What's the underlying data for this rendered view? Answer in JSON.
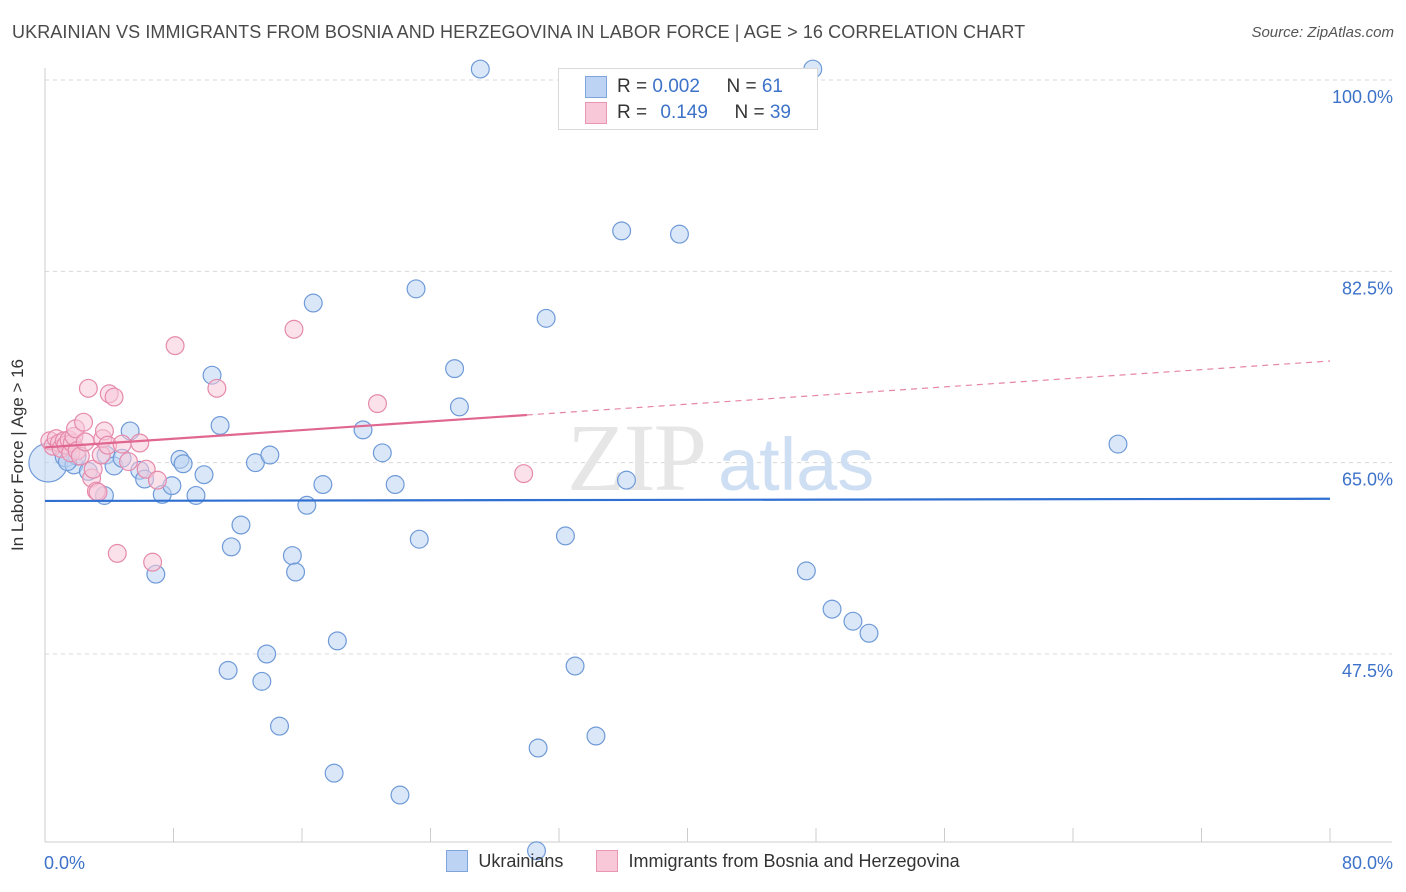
{
  "title": "UKRAINIAN VS IMMIGRANTS FROM BOSNIA AND HERZEGOVINA IN LABOR FORCE | AGE > 16 CORRELATION CHART",
  "source": "Source: ZipAtlas.com",
  "watermark": {
    "zip": "ZIP",
    "atlas": "atlas"
  },
  "stats": {
    "blue": {
      "r_label": "R = ",
      "r_value": "0.002",
      "n_label": "N = ",
      "n_value": "61"
    },
    "pink": {
      "r_label": "R = ",
      "r_value": "0.149",
      "n_label": "N = ",
      "n_value": "39"
    }
  },
  "legend": {
    "blue": "Ukrainians",
    "pink": "Immigrants from Bosnia and Herzegovina"
  },
  "colors": {
    "blue_fill": "#bcd3f3",
    "blue_stroke": "#6f9ad8",
    "blue_line": "#2e6fd1",
    "pink_fill": "#f8c8d8",
    "pink_stroke": "#e58aab",
    "pink_line": "#e0678f",
    "tick_label": "#3d72c9",
    "grid": "#d8d8d8"
  },
  "chart_data": {
    "type": "scatter",
    "title": "UKRAINIAN VS IMMIGRANTS FROM BOSNIA AND HERZEGOVINA IN LABOR FORCE | AGE > 16 CORRELATION CHART",
    "xlabel": "",
    "ylabel": "In Labor Force | Age > 16",
    "xlim": [
      0,
      80
    ],
    "ylim": [
      29,
      102
    ],
    "x_tick_labels": [
      "0.0%",
      "80.0%"
    ],
    "y_ticks": [
      47.5,
      65.0,
      82.5,
      100.0
    ],
    "y_tick_labels": [
      "47.5%",
      "65.0%",
      "82.5%",
      "100.0%"
    ],
    "series": [
      {
        "name": "Ukrainians",
        "r": 0.002,
        "n": 61,
        "trend": {
          "x0": 0,
          "y0": 61.5,
          "x1": 80,
          "y1": 61.7,
          "dashed_from": null
        },
        "points": [
          [
            0.2,
            65.0,
            22
          ],
          [
            1.3,
            65.6,
            12
          ],
          [
            1.8,
            64.8,
            10
          ],
          [
            2.7,
            64.2,
            10
          ],
          [
            3.8,
            65.7,
            10
          ],
          [
            3.7,
            62.0,
            10
          ],
          [
            4.3,
            64.7,
            10
          ],
          [
            4.8,
            65.4,
            10
          ],
          [
            5.3,
            67.9,
            10
          ],
          [
            5.9,
            64.3,
            10
          ],
          [
            6.2,
            63.5,
            10
          ],
          [
            7.3,
            62.1,
            10
          ],
          [
            7.9,
            62.9,
            10
          ],
          [
            8.4,
            65.3,
            10
          ],
          [
            8.6,
            64.9,
            10
          ],
          [
            9.4,
            62.0,
            10
          ],
          [
            9.9,
            63.9,
            10
          ],
          [
            10.4,
            73.0,
            10
          ],
          [
            10.9,
            68.4,
            10
          ],
          [
            6.9,
            54.8,
            10
          ],
          [
            11.6,
            57.3,
            10
          ],
          [
            12.2,
            59.3,
            10
          ],
          [
            13.1,
            65.0,
            10
          ],
          [
            14.0,
            65.7,
            10
          ],
          [
            15.4,
            56.5,
            10
          ],
          [
            15.6,
            55.0,
            10
          ],
          [
            16.3,
            61.1,
            10
          ],
          [
            16.7,
            79.6,
            10
          ],
          [
            17.3,
            63.0,
            10
          ],
          [
            18.2,
            48.7,
            10
          ],
          [
            19.8,
            68.0,
            10
          ],
          [
            21.0,
            65.9,
            10
          ],
          [
            21.8,
            63.0,
            10
          ],
          [
            23.1,
            80.9,
            10
          ],
          [
            23.3,
            58.0,
            10
          ],
          [
            25.5,
            73.6,
            10
          ],
          [
            25.8,
            70.1,
            10
          ],
          [
            27.1,
            101.0,
            10
          ],
          [
            31.2,
            78.2,
            10
          ],
          [
            32.4,
            58.3,
            10
          ],
          [
            35.9,
            86.2,
            10
          ],
          [
            36.2,
            63.4,
            10
          ],
          [
            39.5,
            85.9,
            10
          ],
          [
            47.8,
            101.0,
            10
          ],
          [
            47.4,
            55.1,
            10
          ],
          [
            49.0,
            51.6,
            10
          ],
          [
            50.3,
            50.5,
            10
          ],
          [
            51.3,
            49.4,
            10
          ],
          [
            66.8,
            66.7,
            10
          ],
          [
            11.4,
            46.0,
            10
          ],
          [
            13.5,
            45.0,
            10
          ],
          [
            13.8,
            47.5,
            10
          ],
          [
            14.6,
            40.9,
            10
          ],
          [
            18.0,
            36.6,
            10
          ],
          [
            22.1,
            34.6,
            10
          ],
          [
            30.7,
            38.9,
            10
          ],
          [
            33.0,
            46.4,
            10
          ],
          [
            34.3,
            40.0,
            10
          ],
          [
            30.6,
            29.5,
            10
          ],
          [
            2.0,
            65.6,
            10
          ],
          [
            1.4,
            65.1,
            10
          ]
        ]
      },
      {
        "name": "Immigrants from Bosnia and Herzegovina",
        "r": 0.149,
        "n": 39,
        "trend": {
          "x0": 0,
          "y0": 66.4,
          "x1": 80,
          "y1": 74.3,
          "dashed_from": 30
        },
        "points": [
          [
            0.3,
            67.0,
            10
          ],
          [
            0.5,
            66.5,
            10
          ],
          [
            0.7,
            67.2,
            10
          ],
          [
            0.9,
            66.8,
            10
          ],
          [
            1.0,
            66.3,
            10
          ],
          [
            1.2,
            67.0,
            10
          ],
          [
            1.3,
            66.6,
            10
          ],
          [
            1.5,
            67.1,
            10
          ],
          [
            1.6,
            65.9,
            10
          ],
          [
            1.7,
            66.8,
            10
          ],
          [
            1.8,
            67.4,
            10
          ],
          [
            1.9,
            68.1,
            10
          ],
          [
            2.0,
            66.1,
            10
          ],
          [
            2.2,
            65.6,
            10
          ],
          [
            2.4,
            68.7,
            10
          ],
          [
            2.5,
            66.9,
            10
          ],
          [
            2.7,
            71.8,
            10
          ],
          [
            2.9,
            63.6,
            10
          ],
          [
            3.0,
            64.4,
            10
          ],
          [
            3.2,
            62.4,
            10
          ],
          [
            3.3,
            62.3,
            10
          ],
          [
            3.5,
            65.7,
            10
          ],
          [
            3.6,
            67.2,
            10
          ],
          [
            3.7,
            67.9,
            10
          ],
          [
            3.9,
            66.6,
            10
          ],
          [
            4.0,
            71.3,
            10
          ],
          [
            4.3,
            71.0,
            10
          ],
          [
            4.5,
            56.7,
            10
          ],
          [
            4.8,
            66.7,
            10
          ],
          [
            5.2,
            65.1,
            10
          ],
          [
            5.9,
            66.8,
            10
          ],
          [
            6.3,
            64.4,
            10
          ],
          [
            6.7,
            55.9,
            10
          ],
          [
            7.0,
            63.4,
            10
          ],
          [
            8.1,
            75.7,
            10
          ],
          [
            10.7,
            71.8,
            10
          ],
          [
            15.5,
            77.2,
            10
          ],
          [
            20.7,
            70.4,
            10
          ],
          [
            29.8,
            64.0,
            10
          ]
        ]
      }
    ]
  }
}
